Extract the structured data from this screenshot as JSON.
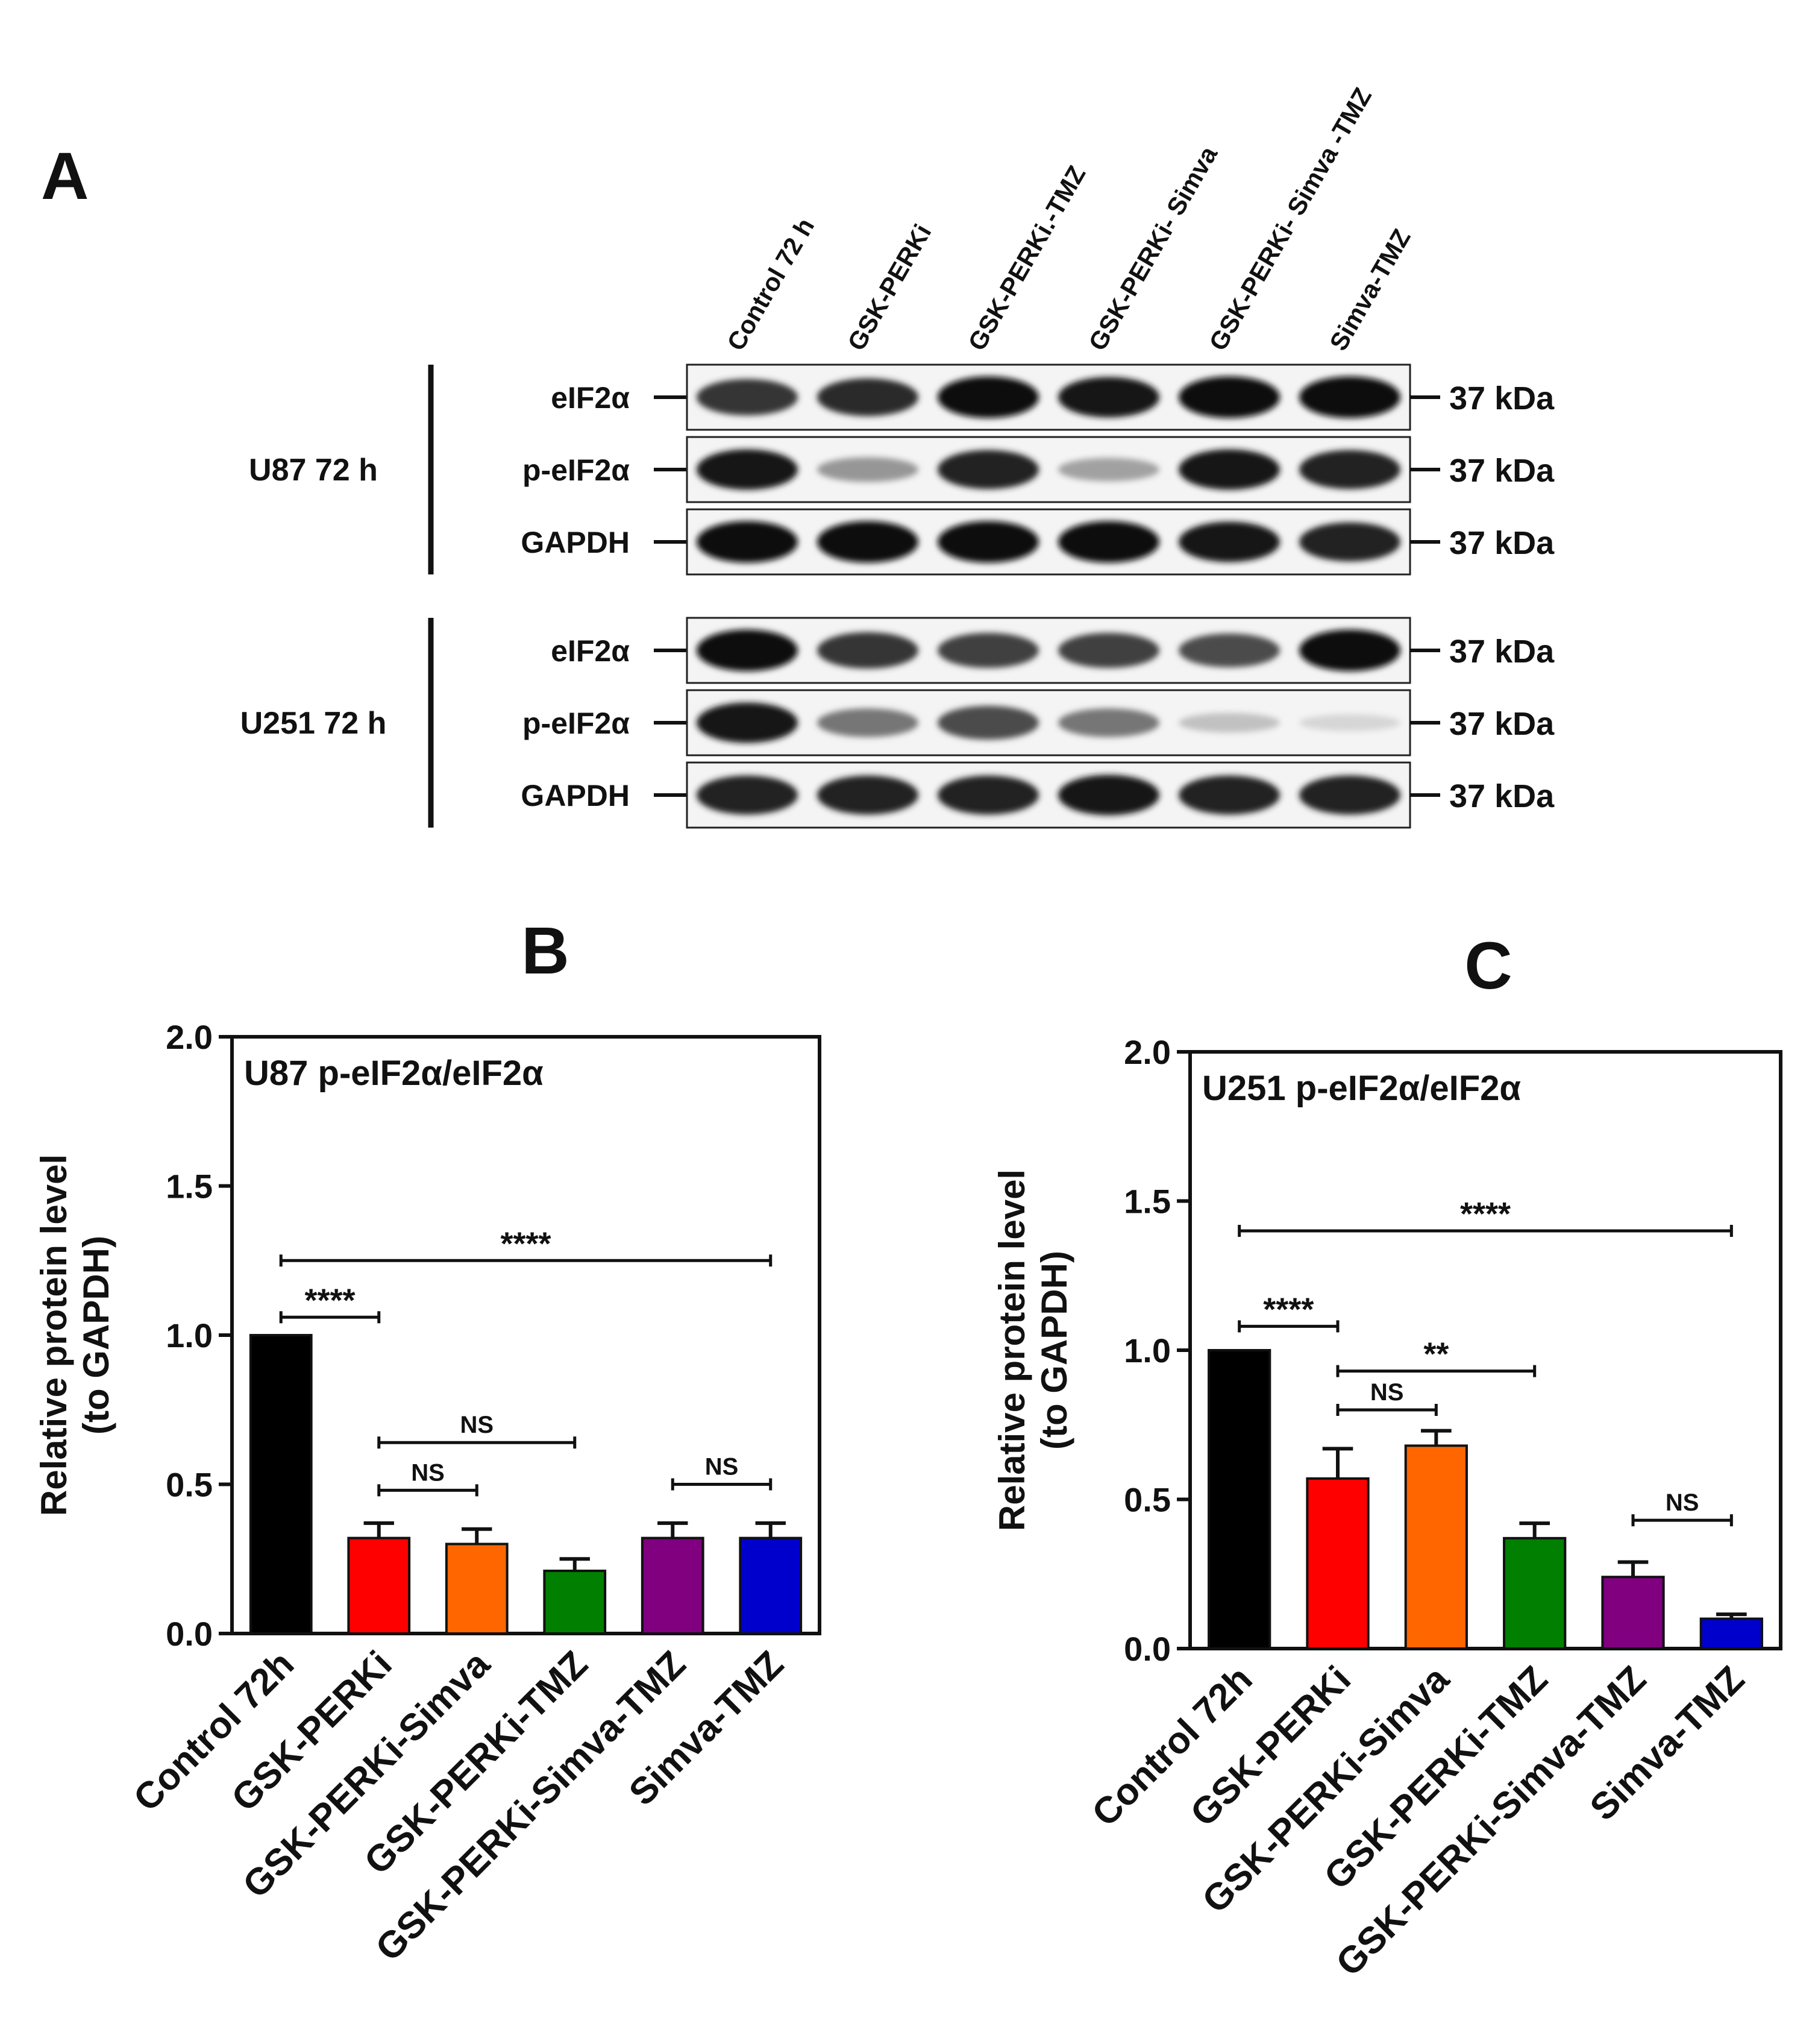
{
  "panels": {
    "a_letter": "A",
    "b_letter": "B",
    "c_letter": "C"
  },
  "blot": {
    "lanes": [
      "Control 72 h",
      "GSK-PERKi",
      "GSK-PERKi.-TMZ",
      "GSK-PERKi- Simva",
      "GSK-PERKi- Simva -TMZ",
      "Simva-TMZ"
    ],
    "groups": [
      {
        "name": "U87 72 h",
        "rows": [
          {
            "label": "eIF2α",
            "kda": "37 kDa",
            "intensity": [
              0.8,
              0.85,
              1.0,
              0.95,
              1.0,
              1.0
            ]
          },
          {
            "label": "p-eIF2α",
            "kda": "37 kDa",
            "intensity": [
              0.95,
              0.35,
              0.9,
              0.3,
              0.95,
              0.9
            ]
          },
          {
            "label": "GAPDH",
            "kda": "37 kDa",
            "intensity": [
              1.0,
              1.0,
              1.0,
              1.0,
              0.95,
              0.9
            ]
          }
        ]
      },
      {
        "name": "U251 72 h",
        "rows": [
          {
            "label": "eIF2α",
            "kda": "37 kDa",
            "intensity": [
              1.0,
              0.8,
              0.75,
              0.75,
              0.7,
              1.0
            ]
          },
          {
            "label": "p-eIF2α",
            "kda": "37 kDa",
            "intensity": [
              0.95,
              0.5,
              0.7,
              0.5,
              0.15,
              0.05
            ]
          },
          {
            "label": "GAPDH",
            "kda": "37 kDa",
            "intensity": [
              0.9,
              0.9,
              0.9,
              0.95,
              0.9,
              0.9
            ]
          }
        ]
      }
    ]
  },
  "chart_data": [
    {
      "type": "bar",
      "panel": "B",
      "title": "U87 p-eIF2α/eIF2α",
      "ylabel": [
        "Relative protein level",
        "(to GAPDH)"
      ],
      "xlabel": "",
      "ylim": [
        0,
        2.0
      ],
      "yticks": [
        "0.0",
        "0.5",
        "1.0",
        "1.5",
        "2.0"
      ],
      "categories": [
        "Control 72h",
        "GSK-PERKi",
        "GSK-PERKi-Simva",
        "GSK-PERKi-TMZ",
        "GSK-PERKi-Simva-TMZ",
        "Simva-TMZ"
      ],
      "values": [
        1.0,
        0.32,
        0.3,
        0.21,
        0.32,
        0.32
      ],
      "errors": [
        0.0,
        0.05,
        0.05,
        0.04,
        0.05,
        0.05
      ],
      "colors": [
        "#000000",
        "#ff0000",
        "#ff6600",
        "#007f00",
        "#800080",
        "#0000cc"
      ],
      "significance": [
        {
          "from": 0,
          "to": 5,
          "y": 1.25,
          "label": "****"
        },
        {
          "from": 0,
          "to": 1,
          "y": 1.06,
          "label": "****"
        },
        {
          "from": 1,
          "to": 3,
          "y": 0.64,
          "label": "NS"
        },
        {
          "from": 1,
          "to": 2,
          "y": 0.48,
          "label": "NS"
        },
        {
          "from": 4,
          "to": 5,
          "y": 0.5,
          "label": "NS"
        }
      ]
    },
    {
      "type": "bar",
      "panel": "C",
      "title": "U251 p-eIF2α/eIF2α",
      "ylabel": [
        "Relative protein level",
        "(to GAPDH)"
      ],
      "xlabel": "",
      "ylim": [
        0,
        2.0
      ],
      "yticks": [
        "0.0",
        "0.5",
        "1.0",
        "1.5",
        "2.0"
      ],
      "categories": [
        "Control 72h",
        "GSK-PERKi",
        "GSK-PERKi-Simva",
        "GSK-PERKi-TMZ",
        "GSK-PERKi-Simva-TMZ",
        "Simva-TMZ"
      ],
      "values": [
        1.0,
        0.57,
        0.68,
        0.37,
        0.24,
        0.1
      ],
      "errors": [
        0.0,
        0.1,
        0.05,
        0.05,
        0.05,
        0.015
      ],
      "colors": [
        "#000000",
        "#ff0000",
        "#ff6600",
        "#007f00",
        "#800080",
        "#0000cc"
      ],
      "significance": [
        {
          "from": 0,
          "to": 5,
          "y": 1.4,
          "label": "****"
        },
        {
          "from": 0,
          "to": 1,
          "y": 1.08,
          "label": "****"
        },
        {
          "from": 1,
          "to": 3,
          "y": 0.93,
          "label": "**"
        },
        {
          "from": 1,
          "to": 2,
          "y": 0.8,
          "label": "NS"
        },
        {
          "from": 4,
          "to": 5,
          "y": 0.43,
          "label": "NS"
        }
      ]
    }
  ]
}
